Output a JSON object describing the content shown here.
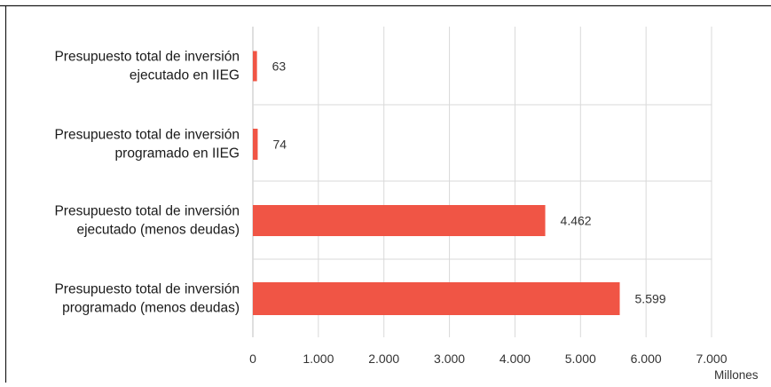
{
  "chart_data": {
    "type": "bar",
    "orientation": "horizontal",
    "categories": [
      [
        "Presupuesto total de inversión",
        "ejecutado en IIEG"
      ],
      [
        "Presupuesto total de inversión",
        "programado en IIEG"
      ],
      [
        "Presupuesto total de inversión",
        "ejecutado (menos deudas)"
      ],
      [
        "Presupuesto total de inversión",
        "programado (menos deudas)"
      ]
    ],
    "values": [
      63,
      74,
      4462,
      5599
    ],
    "value_labels": [
      "63",
      "74",
      "4.462",
      "5.599"
    ],
    "xlim": [
      0,
      7000
    ],
    "x_ticks": [
      0,
      1000,
      2000,
      3000,
      4000,
      5000,
      6000,
      7000
    ],
    "x_tick_labels": [
      "0",
      "1.000",
      "2.000",
      "3.000",
      "4.000",
      "5.000",
      "6.000",
      "7.000"
    ],
    "x_unit_label": "Millones",
    "grid": "vertical",
    "legend": "none",
    "bar_color": "#f05545"
  }
}
